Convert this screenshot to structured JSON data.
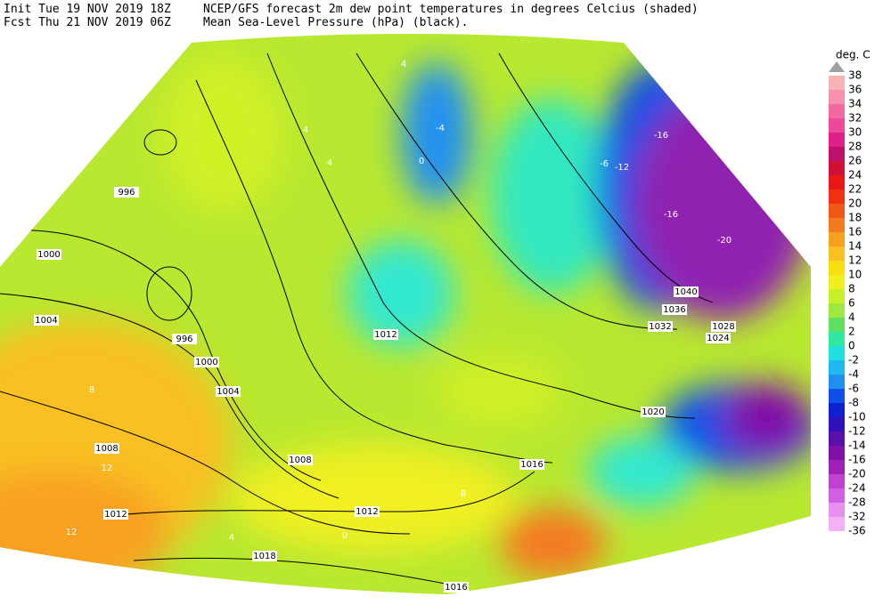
{
  "header": {
    "init": "Init  Tue 19 NOV 2019 18Z",
    "fcst": "Fcst Thu 21 NOV 2019 06Z",
    "line1": "NCEP/GFS forecast 2m dew point temperatures in degrees Celcius (shaded)",
    "line2": "Mean Sea-Level Pressure (hPa) (black)."
  },
  "legend": {
    "title": "deg. C",
    "levels": [
      {
        "value": 38,
        "color": "#a0a0a0"
      },
      {
        "value": 36,
        "color": "#f8b4b4"
      },
      {
        "value": 34,
        "color": "#f890b0"
      },
      {
        "value": 32,
        "color": "#f06aa0"
      },
      {
        "value": 30,
        "color": "#f04898"
      },
      {
        "value": 28,
        "color": "#e0208a"
      },
      {
        "value": 26,
        "color": "#c0106e"
      },
      {
        "value": 24,
        "color": "#d01038"
      },
      {
        "value": 22,
        "color": "#e81818"
      },
      {
        "value": 20,
        "color": "#f03010"
      },
      {
        "value": 18,
        "color": "#f05818"
      },
      {
        "value": 16,
        "color": "#f47a20"
      },
      {
        "value": 14,
        "color": "#f8a020"
      },
      {
        "value": 12,
        "color": "#f8c020"
      },
      {
        "value": 10,
        "color": "#f8e010"
      },
      {
        "value": 8,
        "color": "#f0f020"
      },
      {
        "value": 6,
        "color": "#c8f028"
      },
      {
        "value": 4,
        "color": "#a0e840"
      },
      {
        "value": 2,
        "color": "#60e060"
      },
      {
        "value": 0,
        "color": "#30e8a0"
      },
      {
        "value": -2,
        "color": "#20e0e0"
      },
      {
        "value": -4,
        "color": "#20b8f0"
      },
      {
        "value": -6,
        "color": "#2090f0"
      },
      {
        "value": -8,
        "color": "#1050e8"
      },
      {
        "value": -10,
        "color": "#1020d0"
      },
      {
        "value": -12,
        "color": "#3010b8"
      },
      {
        "value": -14,
        "color": "#5810a8"
      },
      {
        "value": -16,
        "color": "#8010a8"
      },
      {
        "value": -20,
        "color": "#a020b8"
      },
      {
        "value": -24,
        "color": "#c040d0"
      },
      {
        "value": -28,
        "color": "#d060e0"
      },
      {
        "value": -32,
        "color": "#e890f0"
      },
      {
        "value": -36,
        "color": "#f4b0f4"
      }
    ]
  },
  "isobar_labels": [
    "996",
    "1000",
    "1004",
    "996",
    "1000",
    "1004",
    "1008",
    "1008",
    "1012",
    "1012",
    "1012",
    "1016",
    "1016",
    "1018",
    "1020",
    "1024",
    "1028",
    "1032",
    "1036",
    "1040"
  ],
  "dewpoint_labels": [
    "4",
    "4",
    "4",
    "8",
    "12",
    "12",
    "-4",
    "0",
    "-16",
    "-16",
    "-20",
    "-6",
    "-12",
    "8",
    "0",
    "4"
  ]
}
